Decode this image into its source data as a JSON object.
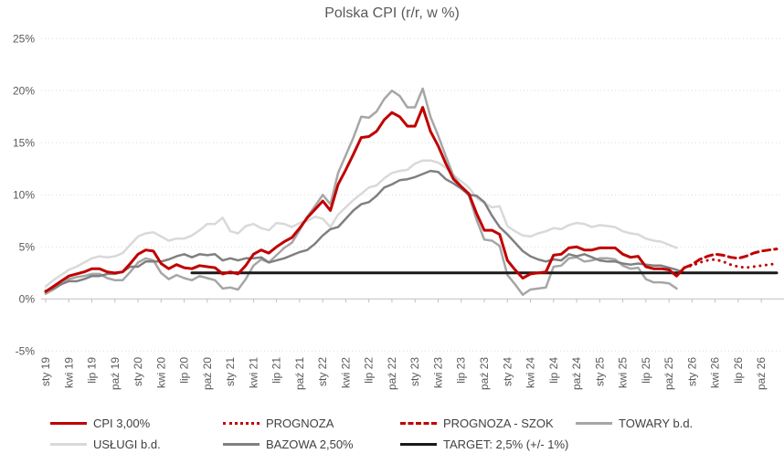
{
  "title": "Polska CPI (r/r, w %)",
  "colors": {
    "cpi": "#c00000",
    "prognoza": "#c00000",
    "prognoza_szok": "#c00000",
    "towary": "#a6a6a6",
    "uslugi": "#d9d9d9",
    "bazowa": "#808080",
    "target": "#1a1a1a",
    "grid": "#d9d9d9",
    "axis": "#bfbfbf",
    "tick_text": "#595959",
    "title_text": "#595959",
    "legend_text": "#404040"
  },
  "chart_data": {
    "type": "line",
    "title": "Polska CPI (r/r, w %)",
    "xlabel": "",
    "ylabel": "",
    "ylim": [
      -5,
      25
    ],
    "grid": "horizontal-dotted",
    "legend_position": "bottom",
    "x_unit": "months, sty 2019 - gru 2026 (96 points)",
    "x_label_step_months": 3,
    "x_tick_labels": [
      "sty 19",
      "kwi 19",
      "lip 19",
      "paź 19",
      "sty 20",
      "kwi 20",
      "lip 20",
      "paź 20",
      "sty 21",
      "kwi 21",
      "lip 21",
      "paź 21",
      "sty 22",
      "kwi 22",
      "lip 22",
      "paź 22",
      "sty 23",
      "kwi 23",
      "lip 23",
      "paź 23",
      "sty 24",
      "kwi 24",
      "lip 24",
      "paź 24",
      "sty 25",
      "kwi 25",
      "lip 25",
      "paź 25",
      "sty 26",
      "kwi 26",
      "lip 26",
      "paź 26"
    ],
    "y_ticks": [
      {
        "value": 25,
        "label": "25%"
      },
      {
        "value": 20,
        "label": "20%"
      },
      {
        "value": 15,
        "label": "15%"
      },
      {
        "value": 10,
        "label": "10%"
      },
      {
        "value": 5,
        "label": "5%"
      },
      {
        "value": 0,
        "label": "0%"
      },
      {
        "value": -5,
        "label": "-5%"
      }
    ],
    "series": [
      {
        "name": "CPI",
        "legend": "CPI 3,00%",
        "color": "#c00000",
        "style": "solid",
        "width": 3,
        "start": 0,
        "values": [
          0.7,
          1.2,
          1.7,
          2.2,
          2.4,
          2.6,
          2.9,
          2.9,
          2.6,
          2.5,
          2.6,
          3.4,
          4.3,
          4.7,
          4.6,
          3.4,
          2.9,
          3.3,
          3.0,
          2.9,
          3.2,
          3.1,
          3.0,
          2.4,
          2.6,
          2.4,
          3.2,
          4.3,
          4.7,
          4.4,
          5.0,
          5.5,
          5.9,
          6.8,
          7.8,
          8.6,
          9.4,
          8.5,
          11.0,
          12.4,
          13.9,
          15.5,
          15.6,
          16.1,
          17.2,
          17.9,
          17.5,
          16.6,
          16.6,
          18.4,
          16.1,
          14.7,
          13.0,
          11.5,
          10.8,
          10.1,
          8.2,
          6.6,
          6.6,
          6.2,
          3.7,
          2.8,
          2.0,
          2.4,
          2.5,
          2.6,
          4.2,
          4.3,
          4.9,
          5.0,
          4.7,
          4.7,
          4.9,
          4.9,
          4.9,
          4.3,
          4.0,
          4.1,
          3.1,
          2.9,
          2.9,
          2.8,
          2.2,
          3.0
        ]
      },
      {
        "name": "PROGNOZA",
        "legend": "PROGNOZA",
        "color": "#c00000",
        "style": "dotted",
        "width": 3,
        "start": 83,
        "values": [
          3.0,
          3.2,
          3.5,
          3.7,
          3.8,
          3.6,
          3.3,
          3.1,
          3.0,
          3.1,
          3.2,
          3.3,
          3.4
        ]
      },
      {
        "name": "PROGNOZA - SZOK",
        "legend": "PROGNOZA - SZOK",
        "color": "#c00000",
        "style": "dashed",
        "width": 3,
        "start": 83,
        "values": [
          3.0,
          3.3,
          3.8,
          4.1,
          4.3,
          4.2,
          4.0,
          3.9,
          4.1,
          4.4,
          4.6,
          4.7,
          4.8
        ]
      },
      {
        "name": "TOWARY",
        "legend": "TOWARY b.d.",
        "color": "#a6a6a6",
        "style": "solid",
        "width": 2.5,
        "start": 0,
        "values": [
          0.5,
          0.9,
          1.4,
          1.9,
          2.1,
          2.2,
          2.4,
          2.4,
          2.0,
          1.8,
          1.8,
          2.6,
          3.5,
          3.9,
          3.7,
          2.5,
          1.9,
          2.3,
          2.0,
          1.8,
          2.2,
          2.0,
          1.8,
          1.0,
          1.1,
          0.9,
          1.9,
          3.2,
          3.8,
          3.5,
          4.2,
          4.9,
          5.4,
          6.6,
          7.9,
          8.9,
          10.0,
          9.1,
          12.1,
          13.8,
          15.5,
          17.5,
          17.4,
          18.0,
          19.2,
          20.0,
          19.5,
          18.4,
          18.4,
          20.2,
          17.5,
          15.7,
          13.7,
          11.8,
          10.8,
          9.9,
          7.6,
          5.7,
          5.6,
          5.1,
          2.3,
          1.4,
          0.4,
          0.9,
          1.0,
          1.1,
          3.1,
          3.2,
          3.9,
          4.0,
          3.6,
          3.7,
          3.9,
          3.9,
          3.8,
          3.2,
          2.9,
          3.0,
          1.9,
          1.6,
          1.6,
          1.5,
          1.0
        ]
      },
      {
        "name": "USŁUGI",
        "legend": "USŁUGI b.d.",
        "color": "#d9d9d9",
        "style": "solid",
        "width": 2.5,
        "start": 0,
        "values": [
          1.2,
          1.8,
          2.3,
          2.8,
          3.1,
          3.5,
          3.9,
          4.1,
          4.0,
          4.1,
          4.4,
          5.2,
          6.0,
          6.3,
          6.4,
          6.0,
          5.6,
          5.8,
          5.8,
          6.1,
          6.6,
          7.2,
          7.2,
          7.8,
          6.5,
          6.3,
          7.0,
          7.2,
          6.8,
          6.6,
          7.3,
          7.2,
          6.9,
          7.3,
          7.5,
          7.9,
          7.7,
          6.9,
          8.1,
          8.8,
          9.5,
          10.1,
          10.7,
          10.9,
          11.6,
          12.1,
          12.3,
          12.4,
          13.0,
          13.3,
          13.3,
          13.1,
          12.6,
          11.9,
          11.3,
          10.7,
          9.7,
          9.2,
          8.8,
          8.9,
          7.0,
          6.5,
          6.1,
          6.0,
          6.3,
          6.5,
          6.8,
          6.7,
          7.1,
          7.3,
          7.2,
          6.9,
          7.1,
          7.0,
          6.9,
          6.5,
          6.3,
          6.2,
          5.8,
          5.6,
          5.5,
          5.2,
          4.9
        ]
      },
      {
        "name": "BAZOWA",
        "legend": "BAZOWA 2,50%",
        "color": "#808080",
        "style": "solid",
        "width": 2.5,
        "start": 0,
        "values": [
          0.8,
          1.0,
          1.4,
          1.7,
          1.7,
          1.9,
          2.2,
          2.2,
          2.4,
          2.4,
          2.6,
          3.1,
          3.1,
          3.6,
          3.6,
          3.6,
          3.8,
          4.1,
          4.3,
          4.0,
          4.3,
          4.2,
          4.3,
          3.7,
          3.9,
          3.7,
          3.9,
          3.9,
          4.0,
          3.5,
          3.7,
          3.9,
          4.2,
          4.5,
          4.7,
          5.3,
          6.1,
          6.7,
          6.9,
          7.7,
          8.5,
          9.1,
          9.3,
          9.9,
          10.7,
          11.0,
          11.4,
          11.5,
          11.7,
          12.0,
          12.3,
          12.2,
          11.5,
          11.1,
          10.6,
          10.0,
          9.9,
          9.3,
          8.0,
          6.9,
          6.2,
          5.4,
          4.6,
          4.1,
          3.8,
          3.6,
          3.8,
          3.7,
          4.3,
          4.1,
          4.3,
          4.0,
          3.7,
          3.6,
          3.6,
          3.4,
          3.3,
          3.4,
          3.3,
          3.2,
          3.2,
          3.0,
          2.8,
          2.5
        ]
      },
      {
        "name": "TARGET",
        "legend": "TARGET: 2,5% (+/- 1%)",
        "color": "#1a1a1a",
        "style": "solid",
        "width": 3,
        "start": 19,
        "end": 95,
        "constant": 2.5
      }
    ]
  }
}
